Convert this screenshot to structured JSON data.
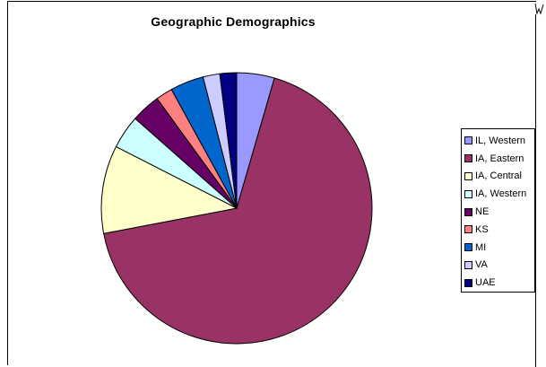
{
  "chart_data": {
    "type": "pie",
    "title": "Geographic Demographics",
    "categories": [
      "IL, Western",
      "IA, Eastern",
      "IA, Central",
      "IA, Western",
      "NE",
      "KS",
      "MI",
      "VA",
      "UAE"
    ],
    "values": [
      4.5,
      67.5,
      10.5,
      4,
      3.5,
      2,
      4,
      2,
      2
    ],
    "colors": [
      "#9999FF",
      "#993366",
      "#FFFFCC",
      "#CCFFFF",
      "#660066",
      "#FF8080",
      "#0066CC",
      "#CCCCFF",
      "#000080"
    ],
    "legend_position": "right"
  }
}
